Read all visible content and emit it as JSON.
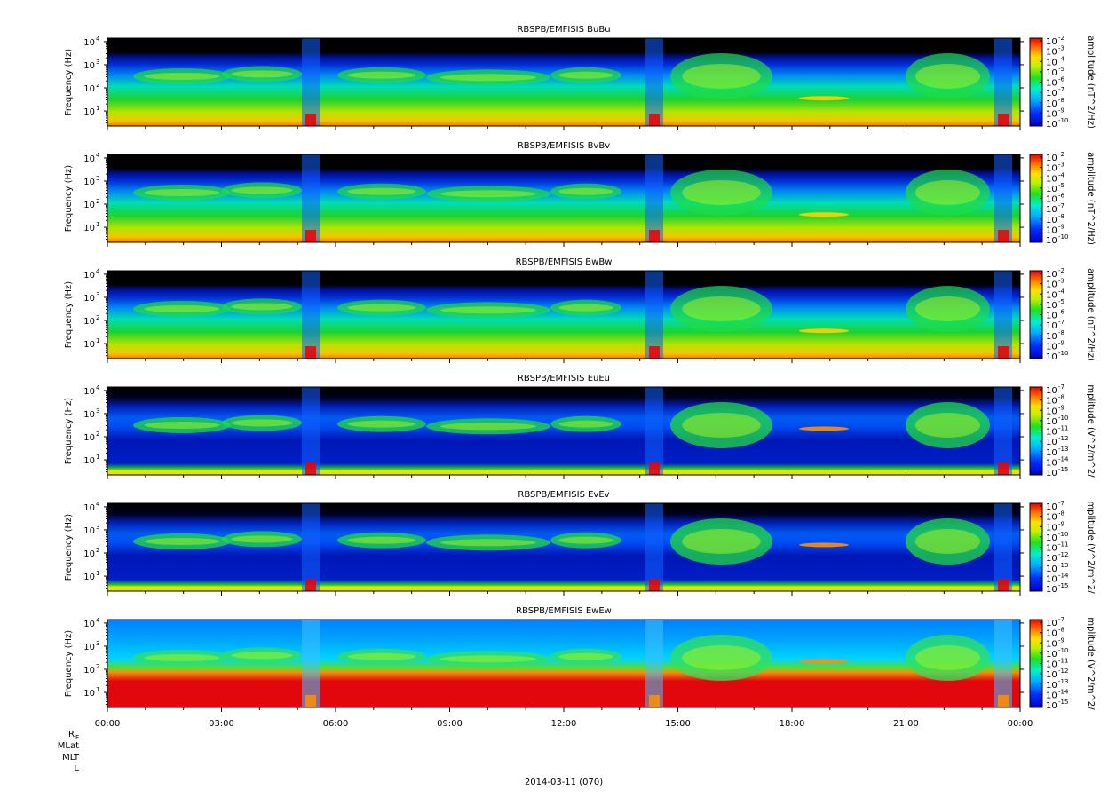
{
  "colors": {
    "background": "#000000",
    "deep_blue": "#0000cc",
    "blue": "#1050ff",
    "cyan": "#00e0ff",
    "green": "#20dd20",
    "yellow": "#f0f000",
    "orange": "#ff8000",
    "red": "#ee0000"
  },
  "chart_data": {
    "type": "heatmap",
    "x_ticks": [
      "00:00",
      "03:00",
      "06:00",
      "09:00",
      "12:00",
      "15:00",
      "18:00",
      "21:00",
      "00:00"
    ],
    "y_scale": "log",
    "y_label": "Frequency (Hz)",
    "y_ticks": [
      {
        "base": "10",
        "exp": "1"
      },
      {
        "base": "10",
        "exp": "2"
      },
      {
        "base": "10",
        "exp": "3"
      },
      {
        "base": "10",
        "exp": "4"
      }
    ],
    "ephemeris_labels": [
      {
        "main": "R",
        "sub": "E"
      },
      {
        "main": "MLat",
        "sub": ""
      },
      {
        "main": "MLT",
        "sub": ""
      },
      {
        "main": "L",
        "sub": ""
      }
    ],
    "date_label": "2014-03-11 (070)",
    "panels": [
      {
        "title": "RBSPB/EMFISIS  BuBu",
        "cb_label": "amplitude (nT^2/Hz)",
        "cb_ticks": [
          "10",
          "10",
          "10",
          "10",
          "10",
          "10",
          "10",
          "10",
          "10"
        ],
        "cb_exps": [
          "-2",
          "-3",
          "-4",
          "-5",
          "-6",
          "-7",
          "-8",
          "-9",
          "-10"
        ]
      },
      {
        "title": "RBSPB/EMFISIS  BvBv",
        "cb_label": "amplitude (nT^2/Hz)",
        "cb_ticks": [
          "10",
          "10",
          "10",
          "10",
          "10",
          "10",
          "10",
          "10",
          "10"
        ],
        "cb_exps": [
          "-2",
          "-3",
          "-4",
          "-5",
          "-6",
          "-7",
          "-8",
          "-9",
          "-10"
        ]
      },
      {
        "title": "RBSPB/EMFISIS  BwBw",
        "cb_label": "amplitude (nT^2/Hz)",
        "cb_ticks": [
          "10",
          "10",
          "10",
          "10",
          "10",
          "10",
          "10",
          "10",
          "10"
        ],
        "cb_exps": [
          "-2",
          "-3",
          "-4",
          "-5",
          "-6",
          "-7",
          "-8",
          "-9",
          "-10"
        ]
      },
      {
        "title": "RBSPB/EMFISIS  EuEu",
        "cb_label": "mplitude (V^2/m^2/",
        "cb_ticks": [
          "10",
          "10",
          "10",
          "10",
          "10",
          "10",
          "10",
          "10",
          "10"
        ],
        "cb_exps": [
          "-7",
          "-8",
          "-9",
          "-10",
          "-11",
          "-12",
          "-13",
          "-14",
          "-15"
        ]
      },
      {
        "title": "RBSPB/EMFISIS  EvEv",
        "cb_label": "mplitude (V^2/m^2/",
        "cb_ticks": [
          "10",
          "10",
          "10",
          "10",
          "10",
          "10",
          "10",
          "10",
          "10"
        ],
        "cb_exps": [
          "-7",
          "-8",
          "-9",
          "-10",
          "-11",
          "-12",
          "-13",
          "-14",
          "-15"
        ]
      },
      {
        "title": "RBSPB/EMFISIS  EwEw",
        "cb_label": "mplitude (V^2/m^2/",
        "cb_ticks": [
          "10",
          "10",
          "10",
          "10",
          "10",
          "10",
          "10",
          "10",
          "10"
        ],
        "cb_exps": [
          "-7",
          "-8",
          "-9",
          "-10",
          "-11",
          "-12",
          "-13",
          "-14",
          "-15"
        ]
      }
    ]
  }
}
